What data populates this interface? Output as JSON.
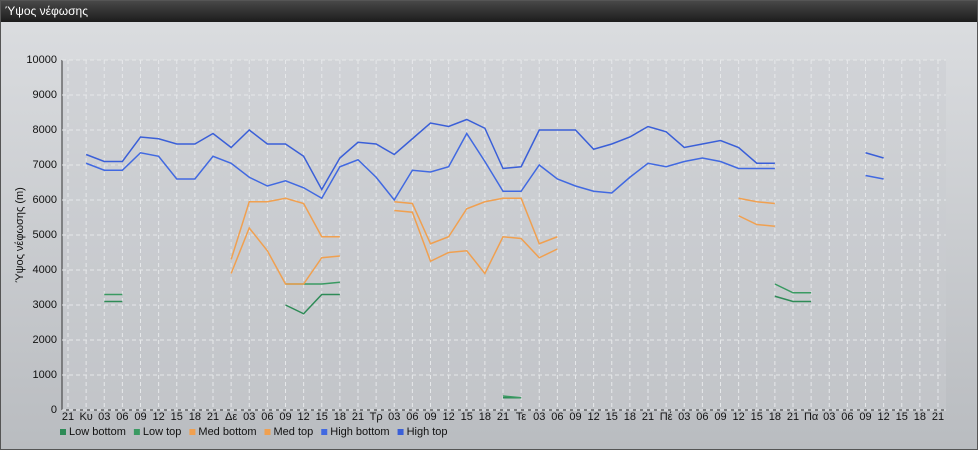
{
  "window_title": "Ύψος νέφωσης",
  "chart_data": {
    "type": "line",
    "y_label": "Ύψος νέφωσης (m)",
    "categories": [
      "21",
      "Κυ",
      "03",
      "06",
      "09",
      "12",
      "15",
      "18",
      "21",
      "Δε",
      "03",
      "06",
      "09",
      "12",
      "15",
      "18",
      "21",
      "Τρ",
      "03",
      "06",
      "09",
      "12",
      "15",
      "18",
      "21",
      "Τε",
      "03",
      "06",
      "09",
      "12",
      "15",
      "18",
      "21",
      "Πέ",
      "03",
      "06",
      "09",
      "12",
      "15",
      "18",
      "21",
      "Πα",
      "03",
      "06",
      "09",
      "12",
      "15",
      "18",
      "21"
    ],
    "ylim": [
      0,
      10000
    ],
    "yticks": [
      0,
      1000,
      2000,
      3000,
      4000,
      5000,
      6000,
      7000,
      8000,
      9000,
      10000
    ],
    "grid": true,
    "series": [
      {
        "name": "Low bottom",
        "color": "#2e8b57",
        "values": [
          null,
          null,
          3100,
          3100,
          null,
          null,
          null,
          null,
          null,
          null,
          null,
          null,
          3000,
          2750,
          3300,
          3300,
          null,
          null,
          null,
          null,
          null,
          null,
          null,
          null,
          350,
          350,
          null,
          null,
          null,
          null,
          null,
          null,
          null,
          null,
          null,
          null,
          null,
          null,
          null,
          3250,
          3100,
          3100,
          null,
          null,
          null,
          null,
          null,
          null,
          null
        ]
      },
      {
        "name": "Low top",
        "color": "#3a9a62",
        "values": [
          null,
          null,
          3300,
          3300,
          null,
          null,
          null,
          null,
          null,
          null,
          null,
          null,
          3600,
          3600,
          3600,
          3650,
          null,
          null,
          null,
          null,
          null,
          null,
          null,
          null,
          400,
          350,
          null,
          null,
          null,
          null,
          null,
          null,
          null,
          null,
          null,
          null,
          null,
          null,
          null,
          3600,
          3350,
          3350,
          null,
          null,
          null,
          null,
          null,
          null,
          null
        ]
      },
      {
        "name": "Med bottom",
        "color": "#f0a050",
        "values": [
          null,
          null,
          null,
          null,
          null,
          null,
          null,
          null,
          null,
          3900,
          5200,
          4550,
          3600,
          3600,
          4350,
          4400,
          null,
          null,
          5700,
          5650,
          4250,
          4500,
          4550,
          3900,
          4950,
          4900,
          4350,
          4600,
          null,
          null,
          null,
          null,
          null,
          null,
          null,
          null,
          null,
          5550,
          5300,
          5250,
          null,
          null,
          null,
          null,
          null,
          null,
          null,
          null,
          null
        ]
      },
      {
        "name": "Med top",
        "color": "#f0a050",
        "values": [
          null,
          null,
          null,
          null,
          null,
          null,
          null,
          null,
          null,
          4300,
          5950,
          5950,
          6050,
          5900,
          4950,
          4950,
          null,
          null,
          5950,
          5900,
          4750,
          4950,
          5750,
          5950,
          6050,
          6050,
          4750,
          4950,
          null,
          null,
          null,
          null,
          null,
          null,
          null,
          null,
          null,
          6050,
          5950,
          5900,
          null,
          null,
          null,
          null,
          null,
          null,
          null,
          null,
          null
        ]
      },
      {
        "name": "High bottom",
        "color": "#4169e1",
        "values": [
          null,
          7050,
          6850,
          6850,
          7350,
          7250,
          6600,
          6600,
          7250,
          7050,
          6650,
          6400,
          6550,
          6350,
          6050,
          6950,
          7150,
          6650,
          6000,
          6850,
          6800,
          6950,
          7900,
          7100,
          6250,
          6250,
          7000,
          6600,
          6400,
          6250,
          6200,
          6650,
          7050,
          6950,
          7100,
          7200,
          7100,
          6900,
          6900,
          6900,
          null,
          null,
          null,
          null,
          6700,
          6600,
          null,
          null,
          null
        ]
      },
      {
        "name": "High top",
        "color": "#3a5fd8",
        "values": [
          null,
          7300,
          7100,
          7100,
          7800,
          7750,
          7600,
          7600,
          7900,
          7500,
          8000,
          7600,
          7600,
          7250,
          6300,
          7200,
          7650,
          7600,
          7300,
          7750,
          8200,
          8100,
          8300,
          8050,
          6900,
          6950,
          8000,
          8000,
          8000,
          7450,
          7600,
          7800,
          8100,
          7950,
          7500,
          7600,
          7700,
          7500,
          7050,
          7050,
          null,
          null,
          null,
          null,
          7350,
          7200,
          null,
          null,
          null
        ]
      }
    ]
  }
}
